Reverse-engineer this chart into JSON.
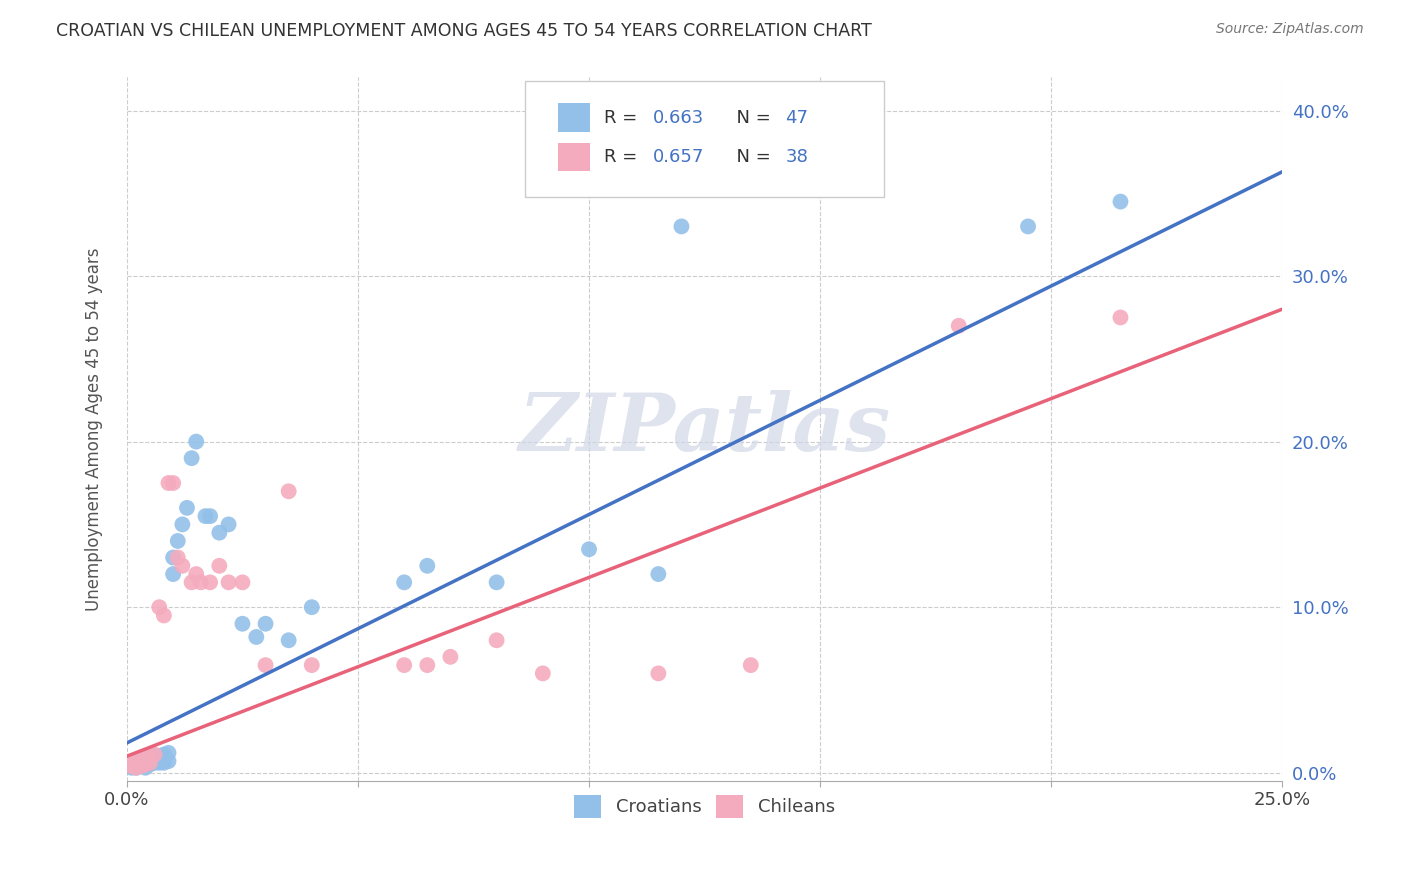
{
  "title": "CROATIAN VS CHILEAN UNEMPLOYMENT AMONG AGES 45 TO 54 YEARS CORRELATION CHART",
  "source": "Source: ZipAtlas.com",
  "ylabel": "Unemployment Among Ages 45 to 54 years",
  "xlim": [
    0.0,
    0.25
  ],
  "ylim": [
    -0.005,
    0.42
  ],
  "xticks": [
    0.0,
    0.05,
    0.1,
    0.15,
    0.2,
    0.25
  ],
  "xtick_labels": [
    "0.0%",
    "",
    "",
    "",
    "",
    "25.0%"
  ],
  "yticks": [
    0.0,
    0.1,
    0.2,
    0.3,
    0.4
  ],
  "ytick_labels_right": [
    "0.0%",
    "10.0%",
    "20.0%",
    "30.0%",
    "40.0%"
  ],
  "croatian_color": "#92C0E8",
  "chilean_color": "#F4ABBE",
  "line_blue": "#4472C4",
  "line_pink": "#E8637A",
  "background_color": "#FFFFFF",
  "grid_color": "#CCCCCC",
  "watermark": "ZIPatlas",
  "blue_line_slope": 1.38,
  "blue_line_intercept": 0.018,
  "pink_line_slope": 1.08,
  "pink_line_intercept": 0.01,
  "croatian_x": [
    0.001,
    0.001,
    0.001,
    0.002,
    0.002,
    0.002,
    0.003,
    0.003,
    0.003,
    0.004,
    0.004,
    0.004,
    0.005,
    0.005,
    0.005,
    0.006,
    0.006,
    0.007,
    0.007,
    0.008,
    0.008,
    0.009,
    0.009,
    0.01,
    0.01,
    0.011,
    0.012,
    0.013,
    0.014,
    0.015,
    0.017,
    0.018,
    0.02,
    0.022,
    0.025,
    0.028,
    0.03,
    0.035,
    0.04,
    0.06,
    0.065,
    0.08,
    0.1,
    0.115,
    0.12,
    0.195,
    0.215
  ],
  "croatian_y": [
    0.005,
    0.004,
    0.003,
    0.006,
    0.005,
    0.003,
    0.007,
    0.005,
    0.004,
    0.008,
    0.006,
    0.003,
    0.009,
    0.007,
    0.005,
    0.01,
    0.006,
    0.01,
    0.006,
    0.011,
    0.006,
    0.012,
    0.007,
    0.13,
    0.12,
    0.14,
    0.15,
    0.16,
    0.19,
    0.2,
    0.155,
    0.155,
    0.145,
    0.15,
    0.09,
    0.082,
    0.09,
    0.08,
    0.1,
    0.115,
    0.125,
    0.115,
    0.135,
    0.12,
    0.33,
    0.33,
    0.345
  ],
  "chilean_x": [
    0.001,
    0.001,
    0.001,
    0.002,
    0.002,
    0.002,
    0.003,
    0.003,
    0.004,
    0.004,
    0.005,
    0.005,
    0.006,
    0.007,
    0.008,
    0.009,
    0.01,
    0.011,
    0.012,
    0.014,
    0.015,
    0.016,
    0.018,
    0.02,
    0.022,
    0.025,
    0.03,
    0.035,
    0.04,
    0.06,
    0.065,
    0.07,
    0.08,
    0.09,
    0.115,
    0.135,
    0.18,
    0.215
  ],
  "chilean_y": [
    0.006,
    0.005,
    0.004,
    0.007,
    0.005,
    0.003,
    0.008,
    0.004,
    0.009,
    0.005,
    0.01,
    0.006,
    0.011,
    0.1,
    0.095,
    0.175,
    0.175,
    0.13,
    0.125,
    0.115,
    0.12,
    0.115,
    0.115,
    0.125,
    0.115,
    0.115,
    0.065,
    0.17,
    0.065,
    0.065,
    0.065,
    0.07,
    0.08,
    0.06,
    0.06,
    0.065,
    0.27,
    0.275
  ]
}
